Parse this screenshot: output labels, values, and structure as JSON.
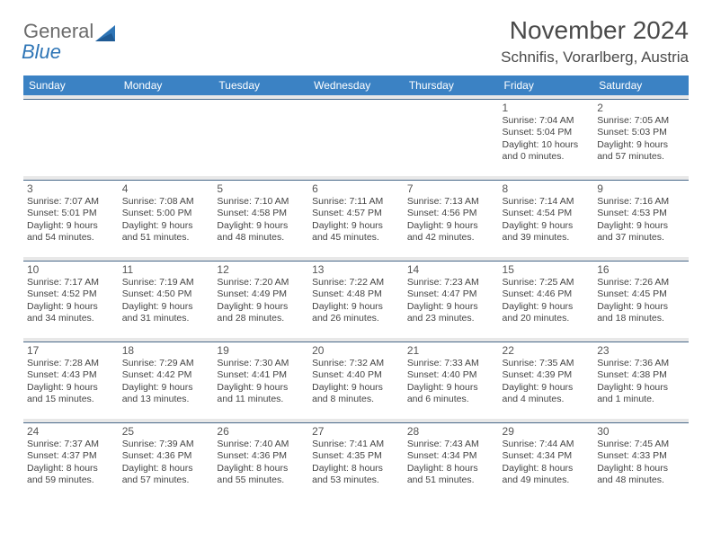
{
  "brand": {
    "part1": "General",
    "part2": "Blue"
  },
  "title": "November 2024",
  "location": "Schnifis, Vorarlberg, Austria",
  "colors": {
    "header_bg": "#3b82c4",
    "header_text": "#ffffff",
    "border": "#4a6a8a",
    "sep": "#e8e8e8",
    "logo_gray": "#6b6b6b",
    "logo_blue": "#2e75b6"
  },
  "day_headers": [
    "Sunday",
    "Monday",
    "Tuesday",
    "Wednesday",
    "Thursday",
    "Friday",
    "Saturday"
  ],
  "weeks": [
    [
      null,
      null,
      null,
      null,
      null,
      {
        "n": "1",
        "sr": "7:04 AM",
        "ss": "5:04 PM",
        "dl": "10 hours and 0 minutes."
      },
      {
        "n": "2",
        "sr": "7:05 AM",
        "ss": "5:03 PM",
        "dl": "9 hours and 57 minutes."
      }
    ],
    [
      {
        "n": "3",
        "sr": "7:07 AM",
        "ss": "5:01 PM",
        "dl": "9 hours and 54 minutes."
      },
      {
        "n": "4",
        "sr": "7:08 AM",
        "ss": "5:00 PM",
        "dl": "9 hours and 51 minutes."
      },
      {
        "n": "5",
        "sr": "7:10 AM",
        "ss": "4:58 PM",
        "dl": "9 hours and 48 minutes."
      },
      {
        "n": "6",
        "sr": "7:11 AM",
        "ss": "4:57 PM",
        "dl": "9 hours and 45 minutes."
      },
      {
        "n": "7",
        "sr": "7:13 AM",
        "ss": "4:56 PM",
        "dl": "9 hours and 42 minutes."
      },
      {
        "n": "8",
        "sr": "7:14 AM",
        "ss": "4:54 PM",
        "dl": "9 hours and 39 minutes."
      },
      {
        "n": "9",
        "sr": "7:16 AM",
        "ss": "4:53 PM",
        "dl": "9 hours and 37 minutes."
      }
    ],
    [
      {
        "n": "10",
        "sr": "7:17 AM",
        "ss": "4:52 PM",
        "dl": "9 hours and 34 minutes."
      },
      {
        "n": "11",
        "sr": "7:19 AM",
        "ss": "4:50 PM",
        "dl": "9 hours and 31 minutes."
      },
      {
        "n": "12",
        "sr": "7:20 AM",
        "ss": "4:49 PM",
        "dl": "9 hours and 28 minutes."
      },
      {
        "n": "13",
        "sr": "7:22 AM",
        "ss": "4:48 PM",
        "dl": "9 hours and 26 minutes."
      },
      {
        "n": "14",
        "sr": "7:23 AM",
        "ss": "4:47 PM",
        "dl": "9 hours and 23 minutes."
      },
      {
        "n": "15",
        "sr": "7:25 AM",
        "ss": "4:46 PM",
        "dl": "9 hours and 20 minutes."
      },
      {
        "n": "16",
        "sr": "7:26 AM",
        "ss": "4:45 PM",
        "dl": "9 hours and 18 minutes."
      }
    ],
    [
      {
        "n": "17",
        "sr": "7:28 AM",
        "ss": "4:43 PM",
        "dl": "9 hours and 15 minutes."
      },
      {
        "n": "18",
        "sr": "7:29 AM",
        "ss": "4:42 PM",
        "dl": "9 hours and 13 minutes."
      },
      {
        "n": "19",
        "sr": "7:30 AM",
        "ss": "4:41 PM",
        "dl": "9 hours and 11 minutes."
      },
      {
        "n": "20",
        "sr": "7:32 AM",
        "ss": "4:40 PM",
        "dl": "9 hours and 8 minutes."
      },
      {
        "n": "21",
        "sr": "7:33 AM",
        "ss": "4:40 PM",
        "dl": "9 hours and 6 minutes."
      },
      {
        "n": "22",
        "sr": "7:35 AM",
        "ss": "4:39 PM",
        "dl": "9 hours and 4 minutes."
      },
      {
        "n": "23",
        "sr": "7:36 AM",
        "ss": "4:38 PM",
        "dl": "9 hours and 1 minute."
      }
    ],
    [
      {
        "n": "24",
        "sr": "7:37 AM",
        "ss": "4:37 PM",
        "dl": "8 hours and 59 minutes."
      },
      {
        "n": "25",
        "sr": "7:39 AM",
        "ss": "4:36 PM",
        "dl": "8 hours and 57 minutes."
      },
      {
        "n": "26",
        "sr": "7:40 AM",
        "ss": "4:36 PM",
        "dl": "8 hours and 55 minutes."
      },
      {
        "n": "27",
        "sr": "7:41 AM",
        "ss": "4:35 PM",
        "dl": "8 hours and 53 minutes."
      },
      {
        "n": "28",
        "sr": "7:43 AM",
        "ss": "4:34 PM",
        "dl": "8 hours and 51 minutes."
      },
      {
        "n": "29",
        "sr": "7:44 AM",
        "ss": "4:34 PM",
        "dl": "8 hours and 49 minutes."
      },
      {
        "n": "30",
        "sr": "7:45 AM",
        "ss": "4:33 PM",
        "dl": "8 hours and 48 minutes."
      }
    ]
  ],
  "labels": {
    "sunrise": "Sunrise:",
    "sunset": "Sunset:",
    "daylight": "Daylight:"
  }
}
